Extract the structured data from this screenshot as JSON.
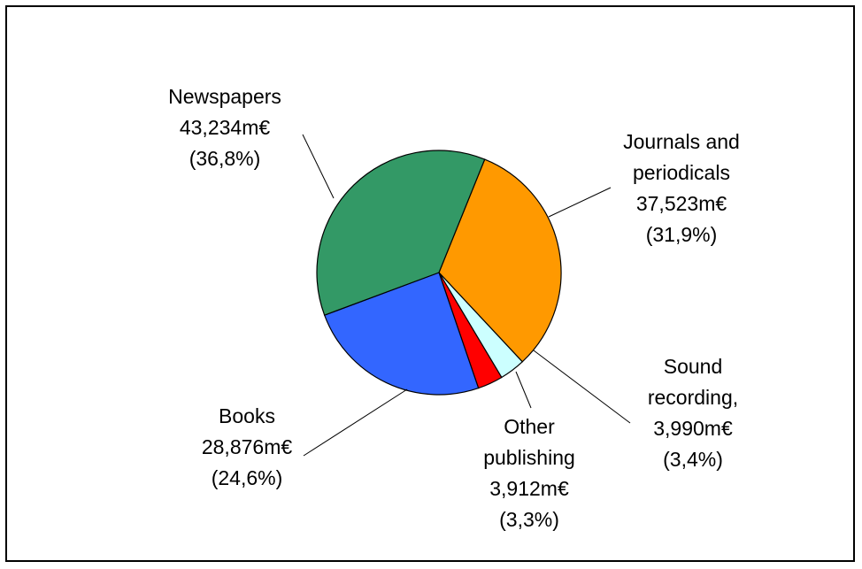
{
  "chart_data": {
    "type": "pie",
    "title": "",
    "unit": "m€",
    "slices": [
      {
        "name": "Journals and periodicals",
        "value": 37523,
        "percent": 31.9,
        "color": "#ff9900",
        "label_lines": [
          "Journals and",
          "periodicals",
          "37,523m€",
          "(31,9%)"
        ]
      },
      {
        "name": "Sound recording",
        "value": 3990,
        "percent": 3.4,
        "color": "#ccffff",
        "label_lines": [
          "Sound",
          "recording,",
          "3,990m€",
          "(3,4%)"
        ]
      },
      {
        "name": "Other publishing",
        "value": 3912,
        "percent": 3.3,
        "color": "#ff0000",
        "label_lines": [
          "Other",
          "publishing",
          "3,912m€",
          "(3,3%)"
        ]
      },
      {
        "name": "Books",
        "value": 28876,
        "percent": 24.6,
        "color": "#3366ff",
        "label_lines": [
          "Books",
          "28,876m€",
          "(24,6%)"
        ]
      },
      {
        "name": "Newspapers",
        "value": 43234,
        "percent": 36.8,
        "color": "#339966",
        "label_lines": [
          "Newspapers",
          "43,234m€",
          "(36,8%)"
        ]
      }
    ]
  }
}
